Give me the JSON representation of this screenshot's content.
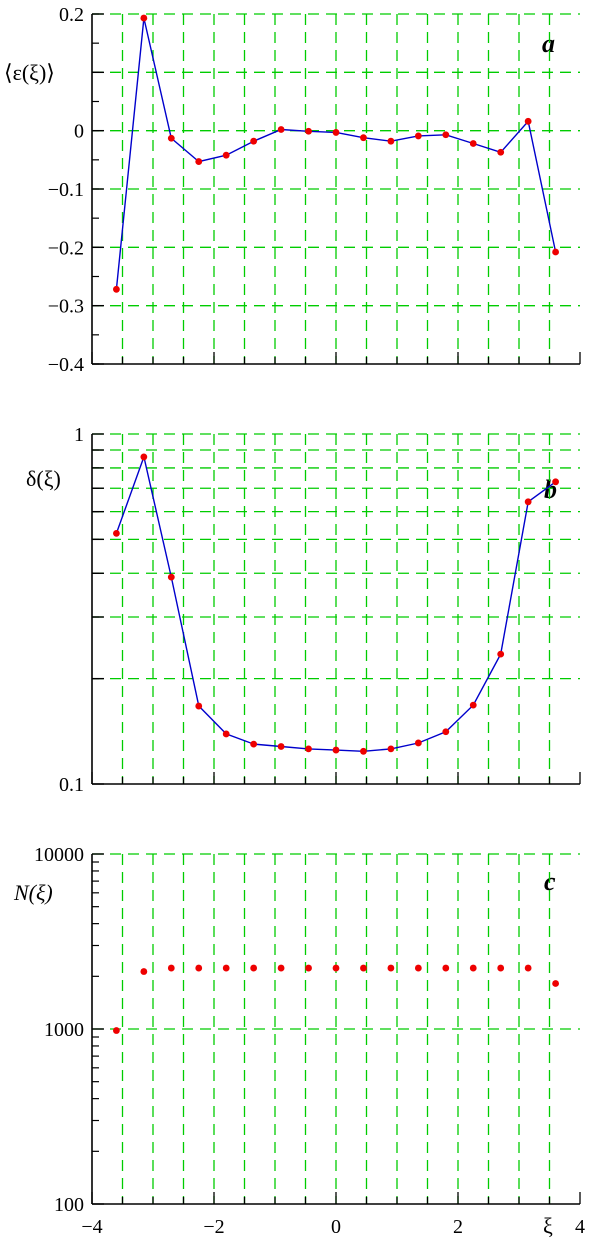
{
  "colors": {
    "grid": "#00cc00",
    "line": "#0000cc",
    "point": "#ee0000",
    "axis": "#000000"
  },
  "x_axis": {
    "label": "ξ",
    "ticks": [
      -4,
      -2,
      0,
      2,
      4
    ],
    "tick_labels": [
      "−4",
      "−2",
      "0",
      "2",
      "4"
    ],
    "xlim": [
      -4,
      4
    ]
  },
  "chart_data": [
    {
      "panel": "a",
      "type": "line",
      "ylabel": "⟨ε(ξ)⟩",
      "yscale": "linear",
      "ylim": [
        -0.4,
        0.2
      ],
      "yticks": [
        0.2,
        0.1,
        0,
        -0.1,
        -0.2,
        -0.3,
        -0.4
      ],
      "ytick_labels": [
        "0.2",
        "",
        "0",
        "−0.1",
        "−0.2",
        "−0.3",
        "−0.4"
      ],
      "x": [
        -3.6,
        -3.15,
        -2.7,
        -2.25,
        -1.8,
        -1.35,
        -0.9,
        -0.45,
        0,
        0.45,
        0.9,
        1.35,
        1.8,
        2.25,
        2.7,
        3.15,
        3.6
      ],
      "y": [
        -0.272,
        0.193,
        -0.013,
        -0.053,
        -0.042,
        -0.018,
        0.002,
        -0.001,
        -0.003,
        -0.012,
        -0.018,
        -0.009,
        -0.007,
        -0.022,
        -0.037,
        0.016,
        -0.208
      ]
    },
    {
      "panel": "b",
      "type": "line",
      "ylabel": "δ(ξ)",
      "yscale": "log",
      "ylim": [
        0.1,
        1
      ],
      "yticks": [
        1,
        0.9,
        0.8,
        0.7,
        0.6,
        0.5,
        0.4,
        0.3,
        0.2,
        0.1
      ],
      "ytick_labels": [
        "1",
        "",
        "",
        "",
        "",
        "",
        "",
        "",
        "",
        "0.1"
      ],
      "x": [
        -3.6,
        -3.15,
        -2.7,
        -2.25,
        -1.8,
        -1.35,
        -0.9,
        -0.45,
        0,
        0.45,
        0.9,
        1.35,
        1.8,
        2.25,
        2.7,
        3.15,
        3.6
      ],
      "y": [
        0.52,
        0.86,
        0.39,
        0.167,
        0.139,
        0.13,
        0.128,
        0.126,
        0.125,
        0.124,
        0.126,
        0.131,
        0.141,
        0.168,
        0.235,
        0.64,
        0.73
      ]
    },
    {
      "panel": "c",
      "type": "scatter",
      "ylabel": "N(ξ)",
      "yscale": "log",
      "ylim": [
        100,
        10000
      ],
      "yticks": [
        10000,
        1000,
        100
      ],
      "ytick_labels": [
        "10000",
        "1000",
        "100"
      ],
      "x": [
        -3.6,
        -3.15,
        -2.7,
        -2.25,
        -1.8,
        -1.35,
        -0.9,
        -0.45,
        0,
        0.45,
        0.9,
        1.35,
        1.8,
        2.25,
        2.7,
        3.15,
        3.6
      ],
      "y": [
        980,
        2130,
        2230,
        2230,
        2230,
        2230,
        2230,
        2230,
        2230,
        2230,
        2230,
        2230,
        2230,
        2230,
        2230,
        2230,
        1820
      ]
    }
  ]
}
